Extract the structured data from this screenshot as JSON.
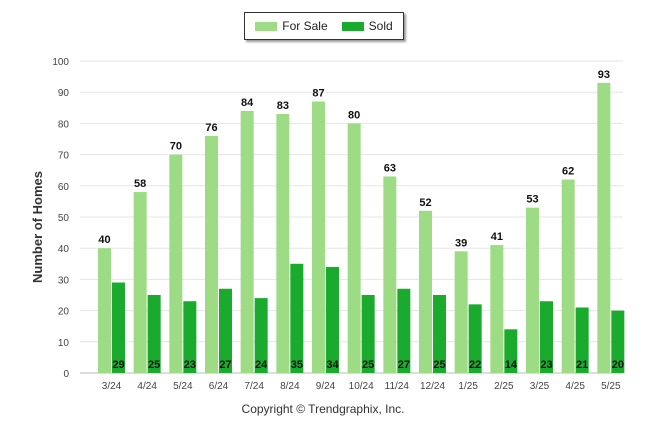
{
  "chart_data": {
    "type": "bar",
    "categories": [
      "3/24",
      "4/24",
      "5/24",
      "6/24",
      "7/24",
      "8/24",
      "9/24",
      "10/24",
      "11/24",
      "12/24",
      "1/25",
      "2/25",
      "3/25",
      "4/25",
      "5/25"
    ],
    "series": [
      {
        "name": "For Sale",
        "color": "#9ddc84",
        "values": [
          40,
          58,
          70,
          76,
          84,
          83,
          87,
          80,
          63,
          52,
          39,
          41,
          53,
          62,
          93
        ]
      },
      {
        "name": "Sold",
        "color": "#1aaa2e",
        "values": [
          29,
          25,
          23,
          27,
          24,
          35,
          34,
          25,
          27,
          25,
          22,
          14,
          23,
          21,
          20
        ]
      }
    ],
    "ylabel": "Number of Homes",
    "xlabel": "",
    "ylim": [
      0,
      100
    ],
    "yticks": [
      0,
      10,
      20,
      30,
      40,
      50,
      60,
      70,
      80,
      90,
      100
    ],
    "grid": true,
    "legend": "top-center"
  },
  "footer": {
    "copyright": "Copyright © Trendgraphix, Inc."
  }
}
